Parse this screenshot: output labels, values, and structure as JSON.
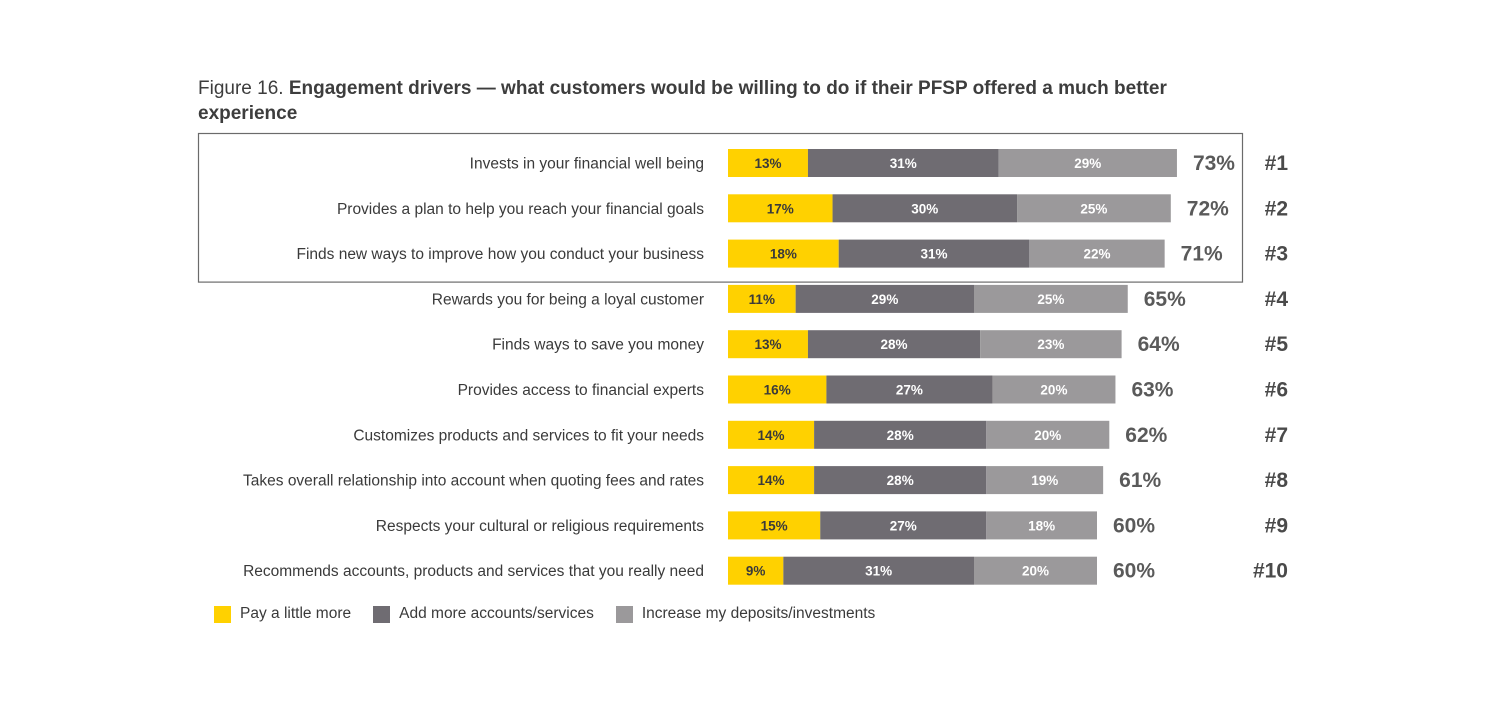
{
  "figure": {
    "number": "Figure 16.",
    "title": "Engagement drivers — what customers would be willing to do if their PFSP offered a much better experience"
  },
  "chart_data": {
    "type": "bar",
    "orientation": "horizontal",
    "stacked": true,
    "title": "Engagement drivers — what customers would be willing to do if their PFSP offered a much better experience",
    "categories": [
      "Invests in your financial well being",
      "Provides a plan to help you reach your financial goals",
      "Finds new ways to improve how you conduct your business",
      "Rewards you for being a loyal customer",
      "Finds ways to save you money",
      "Provides access to financial experts",
      "Customizes products and services to fit your needs",
      "Takes overall relationship into account when quoting fees and rates",
      "Respects your cultural or religious requirements",
      "Recommends accounts, products and services that you really need"
    ],
    "series": [
      {
        "name": "Pay a little more",
        "color": "#ffd100",
        "label_color": "#3a3a3a",
        "values": [
          13,
          17,
          18,
          11,
          13,
          16,
          14,
          14,
          15,
          9
        ]
      },
      {
        "name": "Add more accounts/services",
        "color": "#6f6c72",
        "label_color": "#ffffff",
        "values": [
          31,
          30,
          31,
          29,
          28,
          27,
          28,
          28,
          27,
          31
        ]
      },
      {
        "name": "Increase my deposits/investments",
        "color": "#9b999b",
        "label_color": "#ffffff",
        "values": [
          29,
          25,
          22,
          25,
          23,
          20,
          20,
          19,
          18,
          20
        ]
      }
    ],
    "totals": [
      "73%",
      "72%",
      "71%",
      "65%",
      "64%",
      "63%",
      "62%",
      "61%",
      "60%",
      "60%"
    ],
    "ranks": [
      "#1",
      "#2",
      "#3",
      "#4",
      "#5",
      "#6",
      "#7",
      "#8",
      "#9",
      "#10"
    ],
    "highlighted_top": 3,
    "value_suffix": "%",
    "legend_position": "bottom-left",
    "grid": false
  }
}
